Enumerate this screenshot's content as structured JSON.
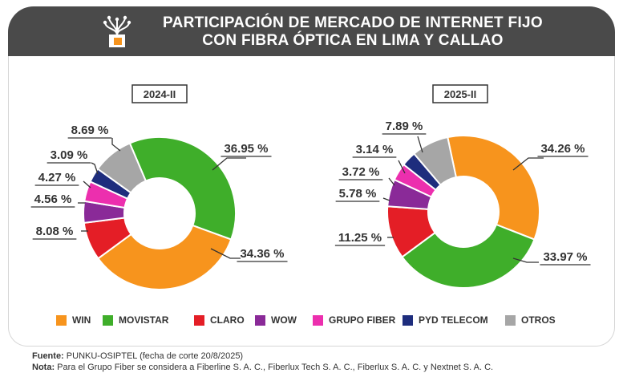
{
  "title": {
    "line1": "PARTICIPACIÓN DE MERCADO DE INTERNET FIJO",
    "line2": "CON FIBRA ÓPTICA EN LIMA Y CALLAO"
  },
  "colors": {
    "WIN": "#f7941d",
    "MOVISTAR": "#3fae2a",
    "CLARO": "#e41e26",
    "WOW": "#8a2a98",
    "GRUPO FIBER": "#ec2fae",
    "PYD TELECOM": "#1e2d7d",
    "OTROS": "#a6a6a6",
    "header_bg": "#4a4a4a"
  },
  "chart_data": [
    {
      "type": "pie",
      "title": "2024-II",
      "categories": [
        "MOVISTAR",
        "WIN",
        "CLARO",
        "WOW",
        "GRUPO FIBER",
        "PYD TELECOM",
        "OTROS"
      ],
      "values": [
        36.95,
        34.36,
        8.08,
        4.56,
        4.27,
        3.09,
        8.69
      ],
      "labels": [
        "36.95 %",
        "34.36 %",
        "8.08 %",
        "4.56 %",
        "4.27 %",
        "3.09 %",
        "8.69 %"
      ]
    },
    {
      "type": "pie",
      "title": "2025-II",
      "categories": [
        "WIN",
        "MOVISTAR",
        "CLARO",
        "WOW",
        "GRUPO FIBER",
        "PYD TELECOM",
        "OTROS"
      ],
      "values": [
        34.26,
        33.97,
        11.25,
        5.78,
        3.72,
        3.14,
        7.89
      ],
      "labels": [
        "34.26 %",
        "33.97 %",
        "11.25 %",
        "5.78 %",
        "3.72 %",
        "3.14 %",
        "7.89 %"
      ]
    }
  ],
  "legend": [
    "WIN",
    "MOVISTAR",
    "CLARO",
    "WOW",
    "GRUPO FIBER",
    "PYD TELECOM",
    "OTROS"
  ],
  "footer": {
    "source_label": "Fuente:",
    "source_text": " PUNKU-OSIPTEL (fecha de corte 20/8/2025)",
    "note_label": "Nota:",
    "note_text": " Para el Grupo Fiber se considera a Fiberline S. A. C., Fiberlux Tech S. A. C., Fiberlux S. A. C. y Nextnet S. A. C."
  }
}
